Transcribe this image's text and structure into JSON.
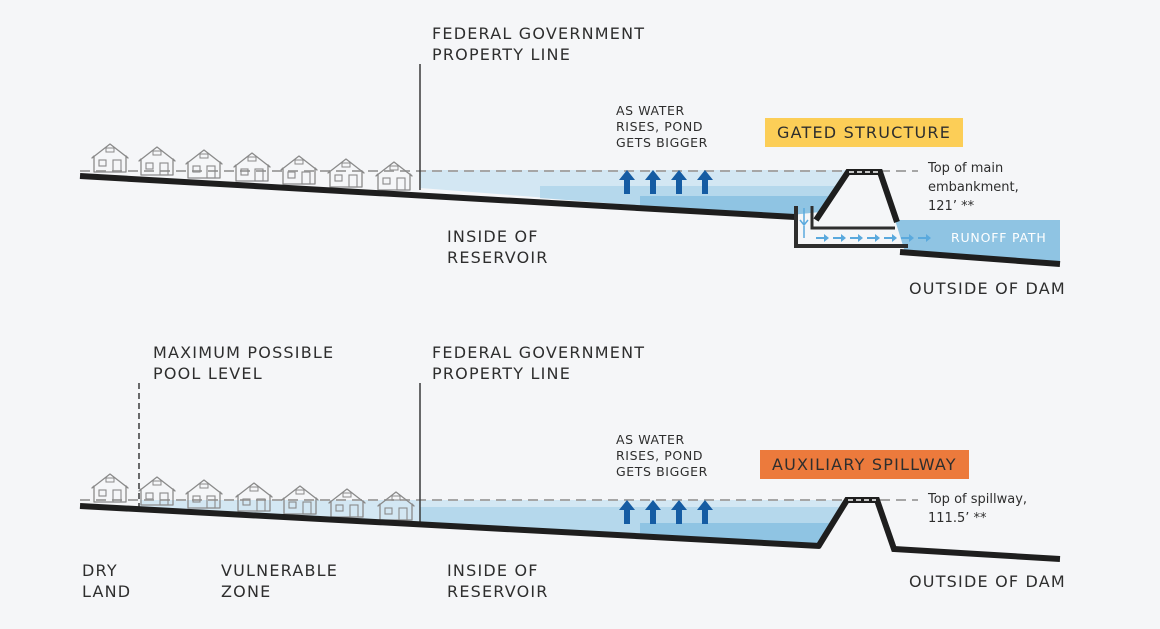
{
  "colors": {
    "background": "#f5f6f8",
    "ground": "#1e1e1e",
    "water_light": "#d3e7f3",
    "water_mid": "#b5d8ec",
    "water_deep": "#8fc4e3",
    "arrow": "#155ca3",
    "flow_arrow": "#5aa9dd",
    "gated_badge": "#fcce57",
    "spillway_badge": "#ec7a3c",
    "house": "#8a8a8a",
    "dashed": "#a6a6a6"
  },
  "top_panel": {
    "property_line_label": "FEDERAL GOVERNMENT\nPROPERTY LINE",
    "water_note": "AS WATER\nRISES, POND\nGETS BIGGER",
    "structure_badge": "GATED STRUCTURE",
    "embankment_note": "Top of main\nembankment,\n121’ **",
    "runoff_label": "RUNOFF PATH",
    "inside_label": "INSIDE OF\nRESERVOIR",
    "outside_label": "OUTSIDE OF DAM"
  },
  "bottom_panel": {
    "max_pool_label": "MAXIMUM POSSIBLE\nPOOL LEVEL",
    "property_line_label": "FEDERAL GOVERNMENT\nPROPERTY LINE",
    "water_note": "AS WATER\nRISES, POND\nGETS BIGGER",
    "structure_badge": "AUXILIARY SPILLWAY",
    "spillway_note": "Top of spillway,\n111.5’ **",
    "dry_land_label": "DRY\nLAND",
    "vulnerable_label": "VULNERABLE\nZONE",
    "inside_label": "INSIDE OF\nRESERVOIR",
    "outside_label": "OUTSIDE OF DAM"
  },
  "icons": {
    "house": "house-icon",
    "up_arrow": "arrow-up-icon",
    "flow_arrow": "arrow-right-icon"
  }
}
